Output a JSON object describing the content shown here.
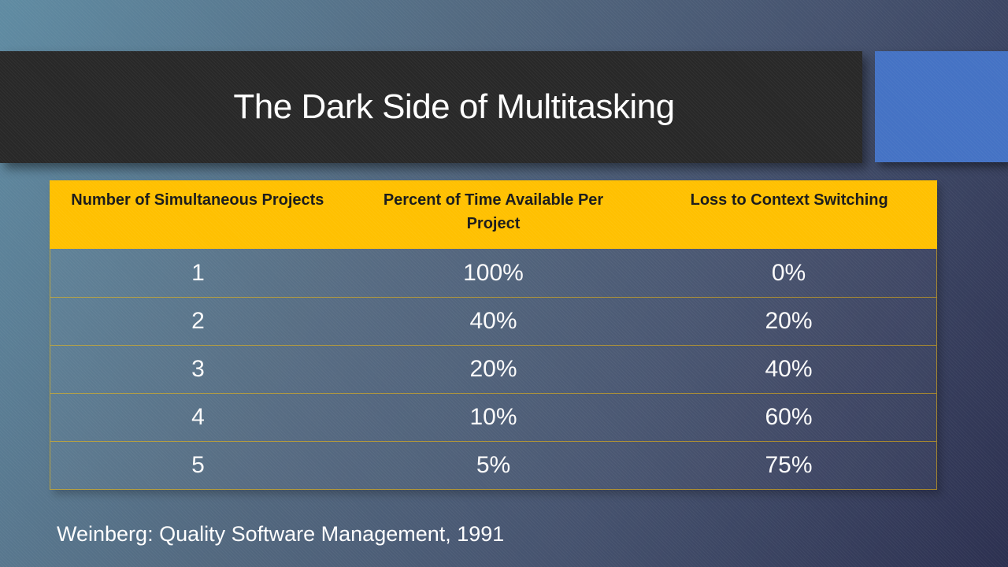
{
  "slide": {
    "title": "The Dark Side of Multitasking",
    "citation": "Weinberg: Quality Software Management, 1991"
  },
  "table": {
    "headers": [
      "Number of Simultaneous Projects",
      "Percent of Time Available Per Project",
      "Loss to Context Switching"
    ],
    "rows": [
      [
        "1",
        "100%",
        "0%"
      ],
      [
        "2",
        "40%",
        "20%"
      ],
      [
        "3",
        "20%",
        "40%"
      ],
      [
        "4",
        "10%",
        "60%"
      ],
      [
        "5",
        "5%",
        "75%"
      ]
    ]
  },
  "colors": {
    "title_bar_bg": "#282828",
    "title_text": "#FFFFFF",
    "accent_rect": "#4472C4",
    "table_header_bg": "#FFC000",
    "table_header_text": "#1A1A1A",
    "table_border_gold": "#B39A3E",
    "table_body_text": "#FFFFFF"
  }
}
